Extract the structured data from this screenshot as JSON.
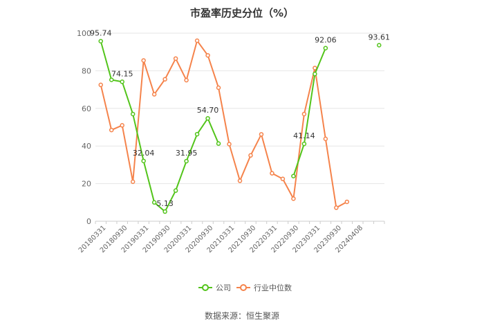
{
  "chart_data": {
    "type": "line",
    "title": "市盈率历史分位（%）",
    "source": "数据来源：恒生聚源",
    "ylim": [
      0,
      100
    ],
    "yticks": [
      0,
      20,
      40,
      60,
      80,
      100
    ],
    "grid": true,
    "legend_position": "bottom",
    "colors": {
      "company": "#52c41a",
      "industry": "#f5834b"
    },
    "x_labels": [
      "20180331",
      "20180930",
      "20190331",
      "20190930",
      "20200331",
      "20200930",
      "20210331",
      "20210930",
      "20220331",
      "20220930",
      "20230331",
      "20230930",
      "20240408"
    ],
    "series": [
      {
        "name": "公司",
        "values": [
          95.74,
          75.2,
          74.15,
          57.0,
          32.04,
          10.0,
          5.13,
          16.3,
          31.95,
          46.3,
          54.7,
          41.3,
          null,
          null,
          null,
          null,
          null,
          null,
          24.0,
          41.14,
          78.3,
          92.06,
          null,
          null,
          null,
          null,
          93.61
        ],
        "labels": [
          {
            "index": 0,
            "text": "95.74"
          },
          {
            "index": 2,
            "text": "74.15"
          },
          {
            "index": 4,
            "text": "32.04"
          },
          {
            "index": 6,
            "text": "5.13"
          },
          {
            "index": 8,
            "text": "31.95"
          },
          {
            "index": 10,
            "text": "54.70"
          },
          {
            "index": 19,
            "text": "41.14"
          },
          {
            "index": 21,
            "text": "92.06"
          },
          {
            "index": 26,
            "text": "93.61"
          }
        ]
      },
      {
        "name": "行业中位数",
        "values": [
          72.5,
          48.5,
          51.0,
          21.0,
          85.5,
          67.5,
          75.5,
          86.5,
          75.0,
          96.0,
          88.2,
          71.0,
          41.0,
          21.5,
          35.0,
          46.2,
          25.5,
          22.5,
          12.0,
          57.0,
          81.5,
          43.8,
          7.2,
          10.3,
          null,
          null,
          null
        ]
      }
    ]
  }
}
